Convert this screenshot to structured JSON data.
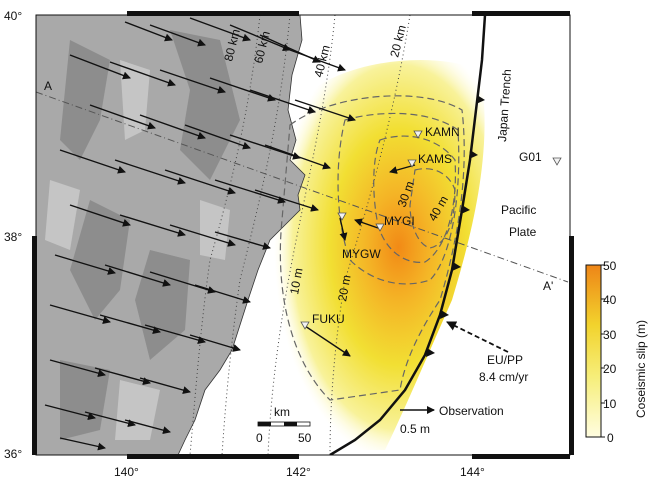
{
  "map": {
    "lat_labels": [
      "40°",
      "38°",
      "36°"
    ],
    "lon_labels": [
      "140°",
      "142°",
      "144°"
    ],
    "profile": {
      "start_label": "A",
      "end_label": "A'"
    },
    "features": {
      "trench": "Japan Trench",
      "plate_line1": "Pacific",
      "plate_line2": "Plate"
    },
    "slip_contours": [
      "10 m",
      "20 m",
      "30 m",
      "40 m"
    ],
    "depth_contours": [
      "20 km",
      "40 km",
      "60 km",
      "80 km"
    ],
    "stations": [
      {
        "id": "KAMN"
      },
      {
        "id": "KAMS"
      },
      {
        "id": "MYGI"
      },
      {
        "id": "MYGW"
      },
      {
        "id": "FUKU"
      },
      {
        "id": "G01"
      }
    ],
    "scale": {
      "unit": "km",
      "min": "0",
      "max": "50"
    },
    "convergence": {
      "line1": "EU/PP",
      "line2": "8.4 cm/yr"
    },
    "observation_legend": {
      "label": "Observation",
      "value": "0.5 m"
    }
  },
  "colorbar": {
    "title": "Coseismic slip (m)",
    "ticks": [
      "0",
      "10",
      "20",
      "30",
      "40",
      "50"
    ],
    "colors": {
      "low": "#fffde0",
      "mid": "#f3e13a",
      "high": "#ef8a17"
    }
  },
  "colors": {
    "land": "#a9a9a9",
    "slip_peak": "#f28a16",
    "frame": "#111111"
  }
}
